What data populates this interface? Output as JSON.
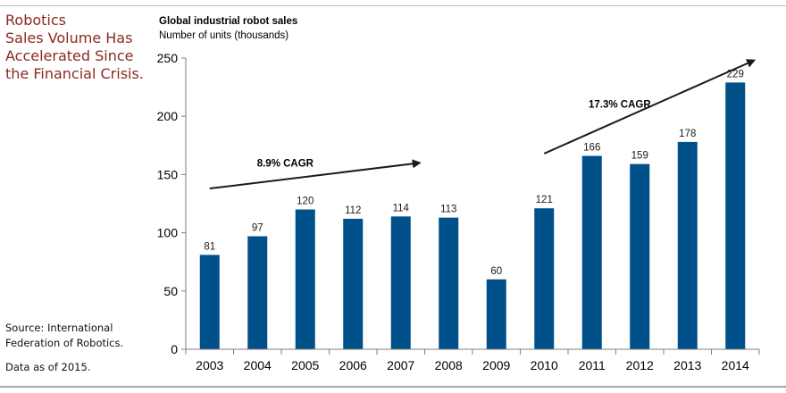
{
  "headline": [
    "Robotics",
    "Sales Volume Has",
    "Accelerated Since",
    "the Financial Crisis."
  ],
  "source_lines": [
    "Source: International",
    "Federation of Robotics."
  ],
  "data_as_of": "Data as of 2015.",
  "colors": {
    "bar": "#00508a",
    "headline": "#8b2a22",
    "arrow": "#1a1a1a"
  },
  "chart_data": {
    "type": "bar",
    "title": "Global industrial robot sales",
    "subtitle": "Number of units (thousands)",
    "categories": [
      "2003",
      "2004",
      "2005",
      "2006",
      "2007",
      "2008",
      "2009",
      "2010",
      "2011",
      "2012",
      "2013",
      "2014"
    ],
    "values": [
      81,
      97,
      120,
      112,
      114,
      113,
      60,
      121,
      166,
      159,
      178,
      229
    ],
    "yticks": [
      0,
      50,
      100,
      150,
      200,
      250
    ],
    "ylim": [
      0,
      250
    ],
    "xlabel": "",
    "ylabel": "",
    "annotations": [
      {
        "text": "8.9% CAGR",
        "from_category": "2003",
        "to_category": "2007",
        "from_value": 138,
        "to_value": 160
      },
      {
        "text": "17.3% CAGR",
        "from_category": "2010",
        "to_category": "2014",
        "from_value": 168,
        "to_value": 248
      }
    ]
  }
}
